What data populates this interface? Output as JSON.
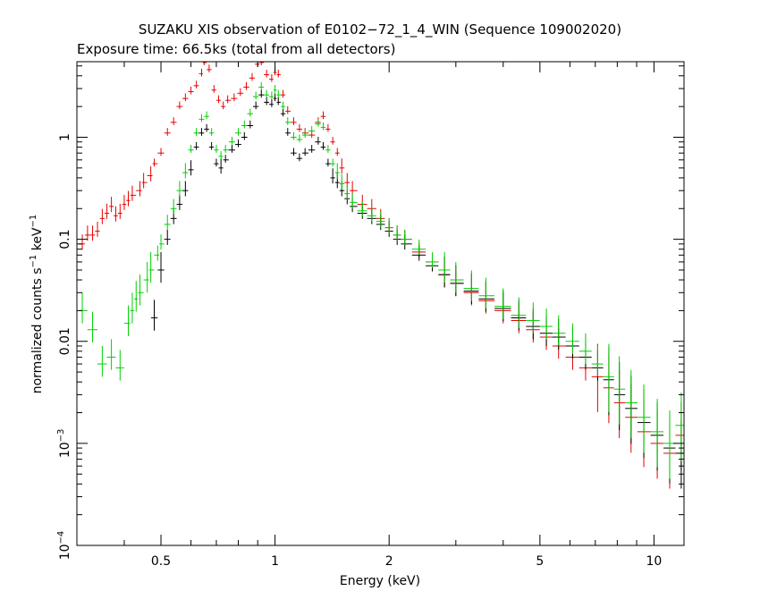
{
  "chart_data": {
    "type": "scatter",
    "title": "SUZAKU XIS observation of E0102−72_1_4_WIN (Sequence 109002020)",
    "subtitle": "Exposure time: 66.5ks (total from all detectors)",
    "xlabel": "Energy (keV)",
    "ylabel_main": "normalized counts s",
    "ylabel_exp1": "−1",
    "ylabel_mid": " keV",
    "ylabel_exp2": "−1",
    "x_scale": "log",
    "y_scale": "log",
    "xlim": [
      0.3,
      12
    ],
    "ylim": [
      0.0001,
      5.5
    ],
    "x_ticks": [
      {
        "value": 0.5,
        "label": "0.5"
      },
      {
        "value": 1,
        "label": "1"
      },
      {
        "value": 2,
        "label": "2"
      },
      {
        "value": 5,
        "label": "5"
      },
      {
        "value": 10,
        "label": "10"
      }
    ],
    "y_ticks": [
      {
        "value": 1,
        "label": "1",
        "exp": ""
      },
      {
        "value": 0.1,
        "label": "0.1",
        "exp": ""
      },
      {
        "value": 0.01,
        "label": "0.01",
        "exp": ""
      },
      {
        "value": 0.001,
        "label": "10",
        "exp": "−3"
      },
      {
        "value": 0.0001,
        "label": "10",
        "exp": "−4"
      }
    ],
    "colors": {
      "xis0": "#000000",
      "xis1": "#e80000",
      "xis3": "#00d000",
      "frame": "#000000"
    },
    "series": [
      {
        "color": "#e80000",
        "points": [
          [
            0.31,
            0.09
          ],
          [
            0.32,
            0.11
          ],
          [
            0.33,
            0.11
          ],
          [
            0.34,
            0.12
          ],
          [
            0.35,
            0.16
          ],
          [
            0.36,
            0.18
          ],
          [
            0.37,
            0.21
          ],
          [
            0.38,
            0.17
          ],
          [
            0.39,
            0.18
          ],
          [
            0.4,
            0.22
          ],
          [
            0.41,
            0.24
          ],
          [
            0.42,
            0.27
          ],
          [
            0.44,
            0.3
          ],
          [
            0.45,
            0.36
          ],
          [
            0.47,
            0.42
          ],
          [
            0.48,
            0.55
          ],
          [
            0.5,
            0.7
          ],
          [
            0.52,
            1.1
          ],
          [
            0.54,
            1.4
          ],
          [
            0.56,
            2.0
          ],
          [
            0.58,
            2.4
          ],
          [
            0.6,
            2.8
          ],
          [
            0.62,
            3.2
          ],
          [
            0.64,
            4.2
          ],
          [
            0.65,
            5.4
          ],
          [
            0.67,
            4.6
          ],
          [
            0.69,
            2.9
          ],
          [
            0.71,
            2.3
          ],
          [
            0.73,
            2.0
          ],
          [
            0.75,
            2.3
          ],
          [
            0.78,
            2.4
          ],
          [
            0.81,
            2.7
          ],
          [
            0.84,
            3.1
          ],
          [
            0.87,
            3.8
          ],
          [
            0.9,
            5.2
          ],
          [
            0.92,
            5.4
          ],
          [
            0.95,
            4.1
          ],
          [
            0.98,
            3.7
          ],
          [
            1.0,
            4.3
          ],
          [
            1.02,
            4.1
          ],
          [
            1.05,
            2.6
          ],
          [
            1.08,
            1.8
          ],
          [
            1.12,
            1.4
          ],
          [
            1.16,
            1.2
          ],
          [
            1.2,
            1.1
          ],
          [
            1.25,
            1.05
          ],
          [
            1.3,
            1.4
          ],
          [
            1.34,
            1.6
          ],
          [
            1.38,
            1.2
          ],
          [
            1.42,
            0.9
          ],
          [
            1.46,
            0.7
          ],
          [
            1.5,
            0.5
          ],
          [
            1.55,
            0.36
          ],
          [
            1.6,
            0.3
          ],
          [
            1.7,
            0.22
          ],
          [
            1.8,
            0.2
          ],
          [
            1.9,
            0.16
          ],
          [
            2.0,
            0.13
          ],
          [
            2.1,
            0.11
          ],
          [
            2.2,
            0.1
          ],
          [
            2.4,
            0.075
          ],
          [
            2.6,
            0.06
          ],
          [
            2.8,
            0.045
          ],
          [
            3.0,
            0.037
          ],
          [
            3.3,
            0.03
          ],
          [
            3.6,
            0.025
          ],
          [
            4.0,
            0.02
          ],
          [
            4.4,
            0.016
          ],
          [
            4.8,
            0.013
          ],
          [
            5.2,
            0.011
          ],
          [
            5.6,
            0.009
          ],
          [
            6.1,
            0.007
          ],
          [
            6.6,
            0.0055
          ],
          [
            7.1,
            0.0045
          ],
          [
            7.6,
            0.0035
          ],
          [
            8.1,
            0.0025
          ],
          [
            8.7,
            0.0018
          ],
          [
            9.4,
            0.0013
          ],
          [
            10.2,
            0.001
          ],
          [
            11.0,
            0.0008
          ],
          [
            11.8,
            0.0012
          ]
        ]
      },
      {
        "color": "#000000",
        "points": [
          [
            0.48,
            0.017
          ],
          [
            0.5,
            0.05
          ],
          [
            0.52,
            0.1
          ],
          [
            0.54,
            0.16
          ],
          [
            0.56,
            0.22
          ],
          [
            0.58,
            0.3
          ],
          [
            0.6,
            0.48
          ],
          [
            0.62,
            0.8
          ],
          [
            0.64,
            1.1
          ],
          [
            0.66,
            1.2
          ],
          [
            0.68,
            0.8
          ],
          [
            0.7,
            0.55
          ],
          [
            0.72,
            0.5
          ],
          [
            0.74,
            0.6
          ],
          [
            0.77,
            0.75
          ],
          [
            0.8,
            0.85
          ],
          [
            0.83,
            1.0
          ],
          [
            0.86,
            1.3
          ],
          [
            0.89,
            2.0
          ],
          [
            0.92,
            2.6
          ],
          [
            0.95,
            2.2
          ],
          [
            0.98,
            2.1
          ],
          [
            1.0,
            2.4
          ],
          [
            1.02,
            2.2
          ],
          [
            1.05,
            1.7
          ],
          [
            1.08,
            1.1
          ],
          [
            1.12,
            0.7
          ],
          [
            1.16,
            0.62
          ],
          [
            1.2,
            0.7
          ],
          [
            1.25,
            0.75
          ],
          [
            1.3,
            0.9
          ],
          [
            1.34,
            0.8
          ],
          [
            1.38,
            0.55
          ],
          [
            1.42,
            0.4
          ],
          [
            1.46,
            0.36
          ],
          [
            1.5,
            0.3
          ],
          [
            1.55,
            0.25
          ],
          [
            1.6,
            0.21
          ],
          [
            1.7,
            0.18
          ],
          [
            1.8,
            0.16
          ],
          [
            1.9,
            0.14
          ],
          [
            2.0,
            0.12
          ],
          [
            2.1,
            0.1
          ],
          [
            2.2,
            0.09
          ],
          [
            2.4,
            0.07
          ],
          [
            2.6,
            0.055
          ],
          [
            2.8,
            0.045
          ],
          [
            3.0,
            0.037
          ],
          [
            3.3,
            0.031
          ],
          [
            3.6,
            0.026
          ],
          [
            4.0,
            0.021
          ],
          [
            4.4,
            0.017
          ],
          [
            4.8,
            0.014
          ],
          [
            5.2,
            0.012
          ],
          [
            5.6,
            0.011
          ],
          [
            6.1,
            0.009
          ],
          [
            6.6,
            0.007
          ],
          [
            7.1,
            0.0055
          ],
          [
            7.6,
            0.0042
          ],
          [
            8.1,
            0.003
          ],
          [
            8.7,
            0.0022
          ],
          [
            9.4,
            0.0016
          ],
          [
            10.2,
            0.0012
          ],
          [
            11.0,
            0.0009
          ],
          [
            11.8,
            0.0008
          ]
        ]
      },
      {
        "color": "#00d000",
        "points": [
          [
            0.31,
            0.02
          ],
          [
            0.33,
            0.013
          ],
          [
            0.35,
            0.006
          ],
          [
            0.37,
            0.007
          ],
          [
            0.39,
            0.0055
          ],
          [
            0.41,
            0.015
          ],
          [
            0.42,
            0.02
          ],
          [
            0.43,
            0.026
          ],
          [
            0.44,
            0.03
          ],
          [
            0.46,
            0.04
          ],
          [
            0.47,
            0.05
          ],
          [
            0.49,
            0.07
          ],
          [
            0.5,
            0.09
          ],
          [
            0.52,
            0.14
          ],
          [
            0.54,
            0.2
          ],
          [
            0.56,
            0.3
          ],
          [
            0.58,
            0.45
          ],
          [
            0.6,
            0.75
          ],
          [
            0.62,
            1.1
          ],
          [
            0.64,
            1.5
          ],
          [
            0.66,
            1.6
          ],
          [
            0.68,
            1.1
          ],
          [
            0.7,
            0.75
          ],
          [
            0.72,
            0.65
          ],
          [
            0.74,
            0.75
          ],
          [
            0.77,
            0.9
          ],
          [
            0.8,
            1.1
          ],
          [
            0.83,
            1.3
          ],
          [
            0.86,
            1.7
          ],
          [
            0.89,
            2.5
          ],
          [
            0.92,
            3.1
          ],
          [
            0.95,
            2.6
          ],
          [
            0.98,
            2.5
          ],
          [
            1.0,
            2.9
          ],
          [
            1.02,
            2.6
          ],
          [
            1.05,
            2.0
          ],
          [
            1.08,
            1.4
          ],
          [
            1.12,
            1.0
          ],
          [
            1.16,
            0.95
          ],
          [
            1.2,
            1.05
          ],
          [
            1.25,
            1.15
          ],
          [
            1.3,
            1.35
          ],
          [
            1.34,
            1.25
          ],
          [
            1.38,
            0.75
          ],
          [
            1.42,
            0.55
          ],
          [
            1.46,
            0.45
          ],
          [
            1.5,
            0.35
          ],
          [
            1.55,
            0.28
          ],
          [
            1.6,
            0.23
          ],
          [
            1.7,
            0.19
          ],
          [
            1.8,
            0.17
          ],
          [
            1.9,
            0.15
          ],
          [
            2.0,
            0.13
          ],
          [
            2.1,
            0.11
          ],
          [
            2.2,
            0.1
          ],
          [
            2.4,
            0.08
          ],
          [
            2.6,
            0.06
          ],
          [
            2.8,
            0.05
          ],
          [
            3.0,
            0.04
          ],
          [
            3.3,
            0.033
          ],
          [
            3.6,
            0.028
          ],
          [
            4.0,
            0.022
          ],
          [
            4.4,
            0.018
          ],
          [
            4.8,
            0.016
          ],
          [
            5.2,
            0.014
          ],
          [
            5.6,
            0.012
          ],
          [
            6.1,
            0.01
          ],
          [
            6.6,
            0.008
          ],
          [
            7.1,
            0.006
          ],
          [
            7.6,
            0.0045
          ],
          [
            8.1,
            0.0034
          ],
          [
            8.7,
            0.0025
          ],
          [
            9.4,
            0.0018
          ],
          [
            10.2,
            0.0013
          ],
          [
            11.0,
            0.001
          ],
          [
            11.8,
            0.0015
          ]
        ]
      }
    ]
  }
}
